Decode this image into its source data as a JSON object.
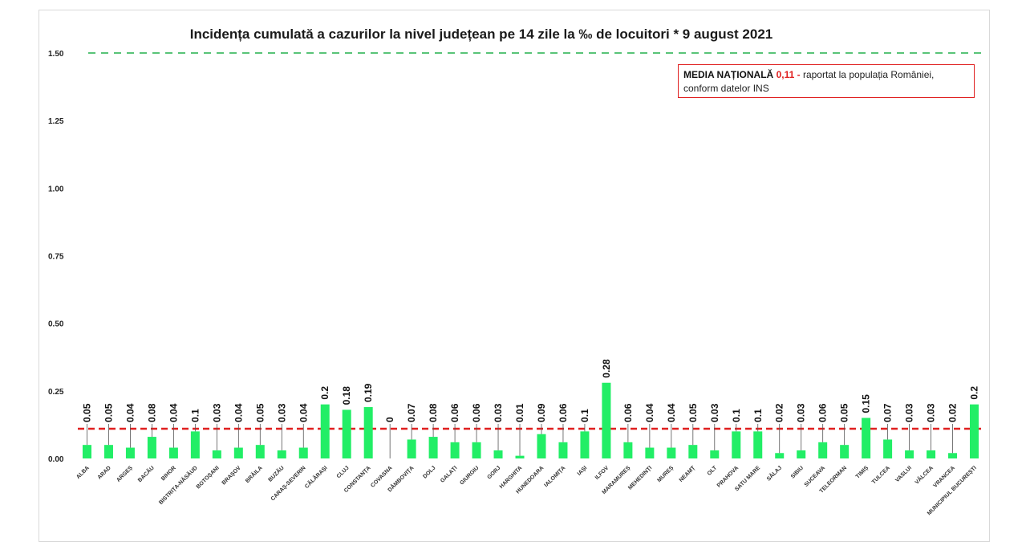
{
  "chart_data": {
    "type": "bar",
    "title": "Incidența cumulată a cazurilor la nivel județean pe 14 zile la ‰ de locuitori *  9 august 2021",
    "xlabel": "",
    "ylabel": "",
    "ylim": [
      0,
      1.5
    ],
    "yticks": [
      "0.00",
      "0.25",
      "0.50",
      "0.75",
      "1.00",
      "1.25",
      "1.50"
    ],
    "grid": false,
    "categories": [
      "ALBA",
      "ARAD",
      "ARGEȘ",
      "BACĂU",
      "BIHOR",
      "BISTRIȚA-NĂSĂUD",
      "BOTOȘANI",
      "BRAȘOV",
      "BRĂILA",
      "BUZĂU",
      "CARAȘ-SEVERIN",
      "CĂLĂRAȘI",
      "CLUJ",
      "CONSTANȚA",
      "COVASNA",
      "DÂMBOVIȚA",
      "DOLJ",
      "GALAȚI",
      "GIURGIU",
      "GORJ",
      "HARGHITA",
      "HUNEDOARA",
      "IALOMIȚA",
      "IAȘI",
      "ILFOV",
      "MARAMUREȘ",
      "MEHEDINȚI",
      "MUREȘ",
      "NEAMȚ",
      "OLT",
      "PRAHOVA",
      "SATU MARE",
      "SĂLAJ",
      "SIBIU",
      "SUCEAVA",
      "TELEORMAN",
      "TIMIȘ",
      "TULCEA",
      "VASLUI",
      "VÂLCEA",
      "VRANCEA",
      "MUNICIPIUL BUCUREȘTI"
    ],
    "values": [
      0.05,
      0.05,
      0.04,
      0.08,
      0.04,
      0.1,
      0.03,
      0.04,
      0.05,
      0.03,
      0.04,
      0.2,
      0.18,
      0.19,
      0,
      0.07,
      0.08,
      0.06,
      0.06,
      0.03,
      0.01,
      0.09,
      0.06,
      0.1,
      0.28,
      0.06,
      0.04,
      0.04,
      0.05,
      0.03,
      0.1,
      0.1,
      0.02,
      0.03,
      0.06,
      0.05,
      0.15,
      0.07,
      0.03,
      0.03,
      0.02,
      0.2
    ],
    "value_labels": [
      "0.05",
      "0.05",
      "0.04",
      "0.08",
      "0.04",
      "0.1",
      "0.03",
      "0.04",
      "0.05",
      "0.03",
      "0.04",
      "0.2",
      "0.18",
      "0.19",
      "0",
      "0.07",
      "0.08",
      "0.06",
      "0.06",
      "0.03",
      "0.01",
      "0.09",
      "0.06",
      "0.1",
      "0.28",
      "0.06",
      "0.04",
      "0.04",
      "0.05",
      "0.03",
      "0.1",
      "0.1",
      "0.02",
      "0.03",
      "0.06",
      "0.05",
      "0.15",
      "0.07",
      "0.03",
      "0.03",
      "0.02",
      "0.2"
    ],
    "reference_lines": [
      {
        "value": 0.11,
        "style": "dashed",
        "color": "#e02020"
      },
      {
        "value": 1.5,
        "style": "dashed",
        "color": "#22b14c"
      }
    ],
    "bar_color": "#22ee66",
    "legend": {
      "placement": "top-right",
      "label": "MEDIA NAȚIONALĂ",
      "value": "0,11",
      "separator": "-",
      "text": "raportat la populația României, conform datelor INS"
    }
  }
}
